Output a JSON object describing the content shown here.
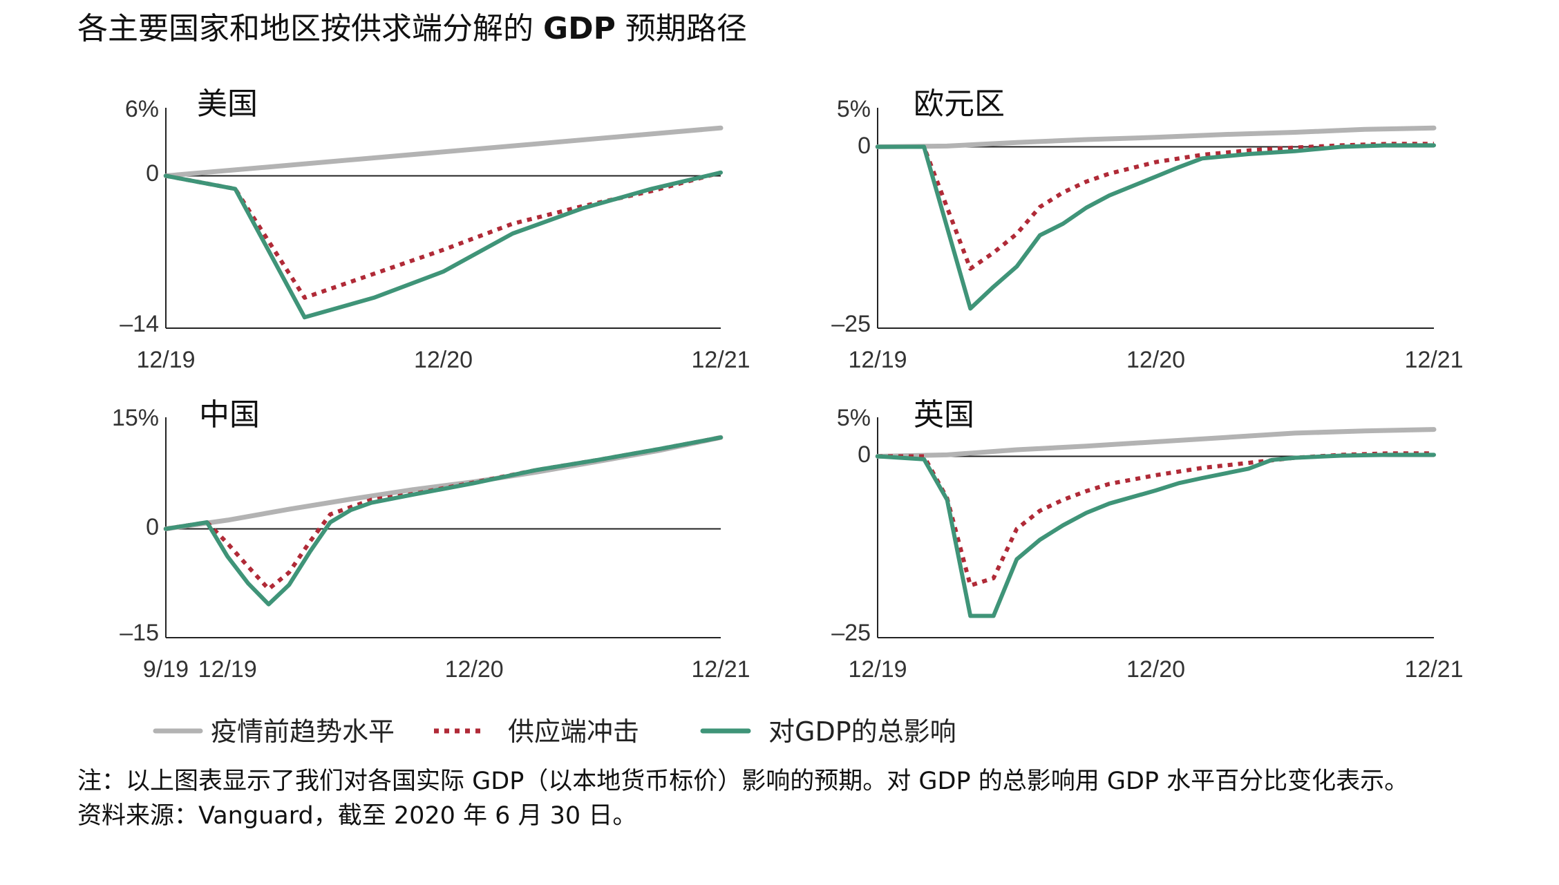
{
  "title": {
    "part1": "各主要国家和地区按供求端分解的",
    "bold": "GDP",
    "part2": "预期路径"
  },
  "colors": {
    "trend": "#b3b3b3",
    "supply": "#b02a37",
    "total": "#3f9478",
    "axis": "#222222"
  },
  "legend": {
    "trend": "疫情前趋势水平",
    "supply": "供应端冲击",
    "total": "对GDP的总影响"
  },
  "notes": {
    "note": "注：以上图表显示了我们对各国实际 GDP（以本地货币标价）影响的预期。对 GDP 的总影响用 GDP 水平百分比变化表示。",
    "source": "资料来源：Vanguard，截至 2020 年 6 月 30 日。"
  },
  "chart_data": [
    {
      "id": "us",
      "type": "line",
      "title": "美国",
      "xlim": [
        0,
        24
      ],
      "x_ticks": [
        {
          "x": 0,
          "label": "12/19"
        },
        {
          "x": 12,
          "label": "12/20"
        },
        {
          "x": 24,
          "label": "12/21"
        }
      ],
      "ylim": [
        -14,
        6
      ],
      "y_ticks": [
        {
          "y": 6,
          "label": "6%"
        },
        {
          "y": 0,
          "label": "0"
        },
        {
          "y": -14,
          "label": "–14"
        }
      ],
      "series": [
        {
          "name": "疫情前趋势水平",
          "key": "trend",
          "x": [
            0,
            24
          ],
          "values": [
            0,
            4.4
          ]
        },
        {
          "name": "供应端冲击",
          "key": "supply",
          "x": [
            0,
            3,
            6,
            9,
            12,
            15,
            18,
            21,
            24
          ],
          "values": [
            0,
            -1.2,
            -11.2,
            -9.0,
            -6.8,
            -4.4,
            -2.8,
            -1.4,
            0.3
          ]
        },
        {
          "name": "对GDP的总影响",
          "key": "total",
          "x": [
            0,
            3,
            6,
            9,
            12,
            15,
            18,
            21,
            24
          ],
          "values": [
            0,
            -1.2,
            -13.0,
            -11.2,
            -8.8,
            -5.3,
            -3.0,
            -1.2,
            0.3
          ]
        }
      ]
    },
    {
      "id": "ez",
      "type": "line",
      "title": "欧元区",
      "xlim": [
        0,
        24
      ],
      "x_ticks": [
        {
          "x": 0,
          "label": "12/19"
        },
        {
          "x": 12,
          "label": "12/20"
        },
        {
          "x": 24,
          "label": "12/21"
        }
      ],
      "ylim": [
        -25,
        5
      ],
      "y_ticks": [
        {
          "y": 5,
          "label": "5%"
        },
        {
          "y": 0,
          "label": "0"
        },
        {
          "y": -25,
          "label": "–25"
        }
      ],
      "series": [
        {
          "name": "疫情前趋势水平",
          "key": "trend",
          "x": [
            0,
            3,
            6,
            9,
            12,
            15,
            18,
            21,
            24
          ],
          "values": [
            0,
            0.1,
            0.6,
            1.0,
            1.3,
            1.7,
            2.0,
            2.4,
            2.6
          ]
        },
        {
          "name": "供应端冲击",
          "key": "supply",
          "x": [
            0,
            2,
            4,
            5,
            6,
            7,
            8,
            9,
            10,
            12,
            14,
            16,
            18,
            20,
            22,
            24
          ],
          "values": [
            0,
            0,
            -16.8,
            -14.6,
            -12.0,
            -8.3,
            -6.3,
            -4.8,
            -3.7,
            -2.1,
            -1.1,
            -0.5,
            -0.1,
            0.2,
            0.4,
            0.4
          ]
        },
        {
          "name": "对GDP的总影响",
          "key": "total",
          "x": [
            0,
            2,
            4,
            5,
            6,
            7,
            8,
            9,
            10,
            12,
            13,
            14,
            16,
            18,
            20,
            22,
            24
          ],
          "values": [
            0,
            0,
            -22.3,
            -19.3,
            -16.5,
            -12.2,
            -10.6,
            -8.4,
            -6.7,
            -4.1,
            -2.8,
            -1.6,
            -1.0,
            -0.6,
            0,
            0.2,
            0.2
          ]
        }
      ]
    },
    {
      "id": "cn",
      "type": "line",
      "title": "中国",
      "xlim": [
        0,
        27
      ],
      "x_ticks": [
        {
          "x": 0,
          "label": "9/19"
        },
        {
          "x": 3,
          "label": "12/19"
        },
        {
          "x": 15,
          "label": "12/20"
        },
        {
          "x": 27,
          "label": "12/21"
        }
      ],
      "ylim": [
        -15,
        15
      ],
      "y_ticks": [
        {
          "y": 15,
          "label": "15%"
        },
        {
          "y": 0,
          "label": "0"
        },
        {
          "y": -15,
          "label": "–15"
        }
      ],
      "series": [
        {
          "name": "疫情前趋势水平",
          "key": "trend",
          "x": [
            0,
            3,
            6,
            9,
            12,
            15,
            18,
            21,
            24,
            27
          ],
          "values": [
            0,
            1.2,
            2.7,
            4.1,
            5.4,
            6.5,
            7.8,
            9.3,
            10.8,
            12.6
          ]
        },
        {
          "name": "供应端冲击",
          "key": "supply",
          "x": [
            0,
            2,
            3,
            4,
            5,
            6,
            7,
            8,
            9,
            10,
            12,
            15,
            18,
            21,
            24,
            27
          ],
          "values": [
            0,
            0.9,
            -2.0,
            -5.2,
            -8.3,
            -6.0,
            -1.8,
            2.0,
            3.0,
            4.0,
            4.8,
            6.4,
            8.1,
            9.5,
            11.0,
            12.6
          ]
        },
        {
          "name": "对GDP的总影响",
          "key": "total",
          "x": [
            0,
            2,
            3,
            4,
            5,
            6,
            7,
            8,
            9,
            10,
            12,
            15,
            18,
            21,
            24,
            27
          ],
          "values": [
            0,
            0.9,
            -3.8,
            -7.5,
            -10.4,
            -7.7,
            -3.2,
            0.9,
            2.6,
            3.6,
            4.7,
            6.3,
            8.1,
            9.5,
            11.0,
            12.6
          ]
        }
      ]
    },
    {
      "id": "uk",
      "type": "line",
      "title": "英国",
      "xlim": [
        0,
        24
      ],
      "x_ticks": [
        {
          "x": 0,
          "label": "12/19"
        },
        {
          "x": 12,
          "label": "12/20"
        },
        {
          "x": 24,
          "label": "12/21"
        }
      ],
      "ylim": [
        -25,
        5
      ],
      "y_ticks": [
        {
          "y": 5,
          "label": "5%"
        },
        {
          "y": 0,
          "label": "0"
        },
        {
          "y": -25,
          "label": "–25"
        }
      ],
      "series": [
        {
          "name": "疫情前趋势水平",
          "key": "trend",
          "x": [
            0,
            3,
            6,
            9,
            12,
            15,
            18,
            21,
            24
          ],
          "values": [
            0,
            0.2,
            0.9,
            1.4,
            2.0,
            2.6,
            3.2,
            3.5,
            3.7
          ]
        },
        {
          "name": "供应端冲击",
          "key": "supply",
          "x": [
            0,
            2,
            3,
            4,
            5,
            6,
            7,
            8,
            9,
            10,
            12,
            14,
            16,
            18,
            20,
            22,
            24
          ],
          "values": [
            0,
            0,
            -5.8,
            -17.8,
            -16.8,
            -10.0,
            -7.5,
            -6.0,
            -4.8,
            -3.8,
            -2.6,
            -1.6,
            -0.9,
            -0.2,
            0.2,
            0.4,
            0.4
          ]
        },
        {
          "name": "对GDP的总影响",
          "key": "total",
          "x": [
            0,
            2,
            3,
            4,
            5,
            6,
            7,
            8,
            9,
            10,
            12,
            13,
            14,
            16,
            17,
            18,
            20,
            22,
            24
          ],
          "values": [
            0,
            -0.4,
            -6.0,
            -22.0,
            -22.0,
            -14.2,
            -11.5,
            -9.5,
            -7.8,
            -6.5,
            -4.7,
            -3.7,
            -3.0,
            -1.7,
            -0.5,
            -0.2,
            0.1,
            0.2,
            0.2
          ]
        }
      ]
    }
  ]
}
